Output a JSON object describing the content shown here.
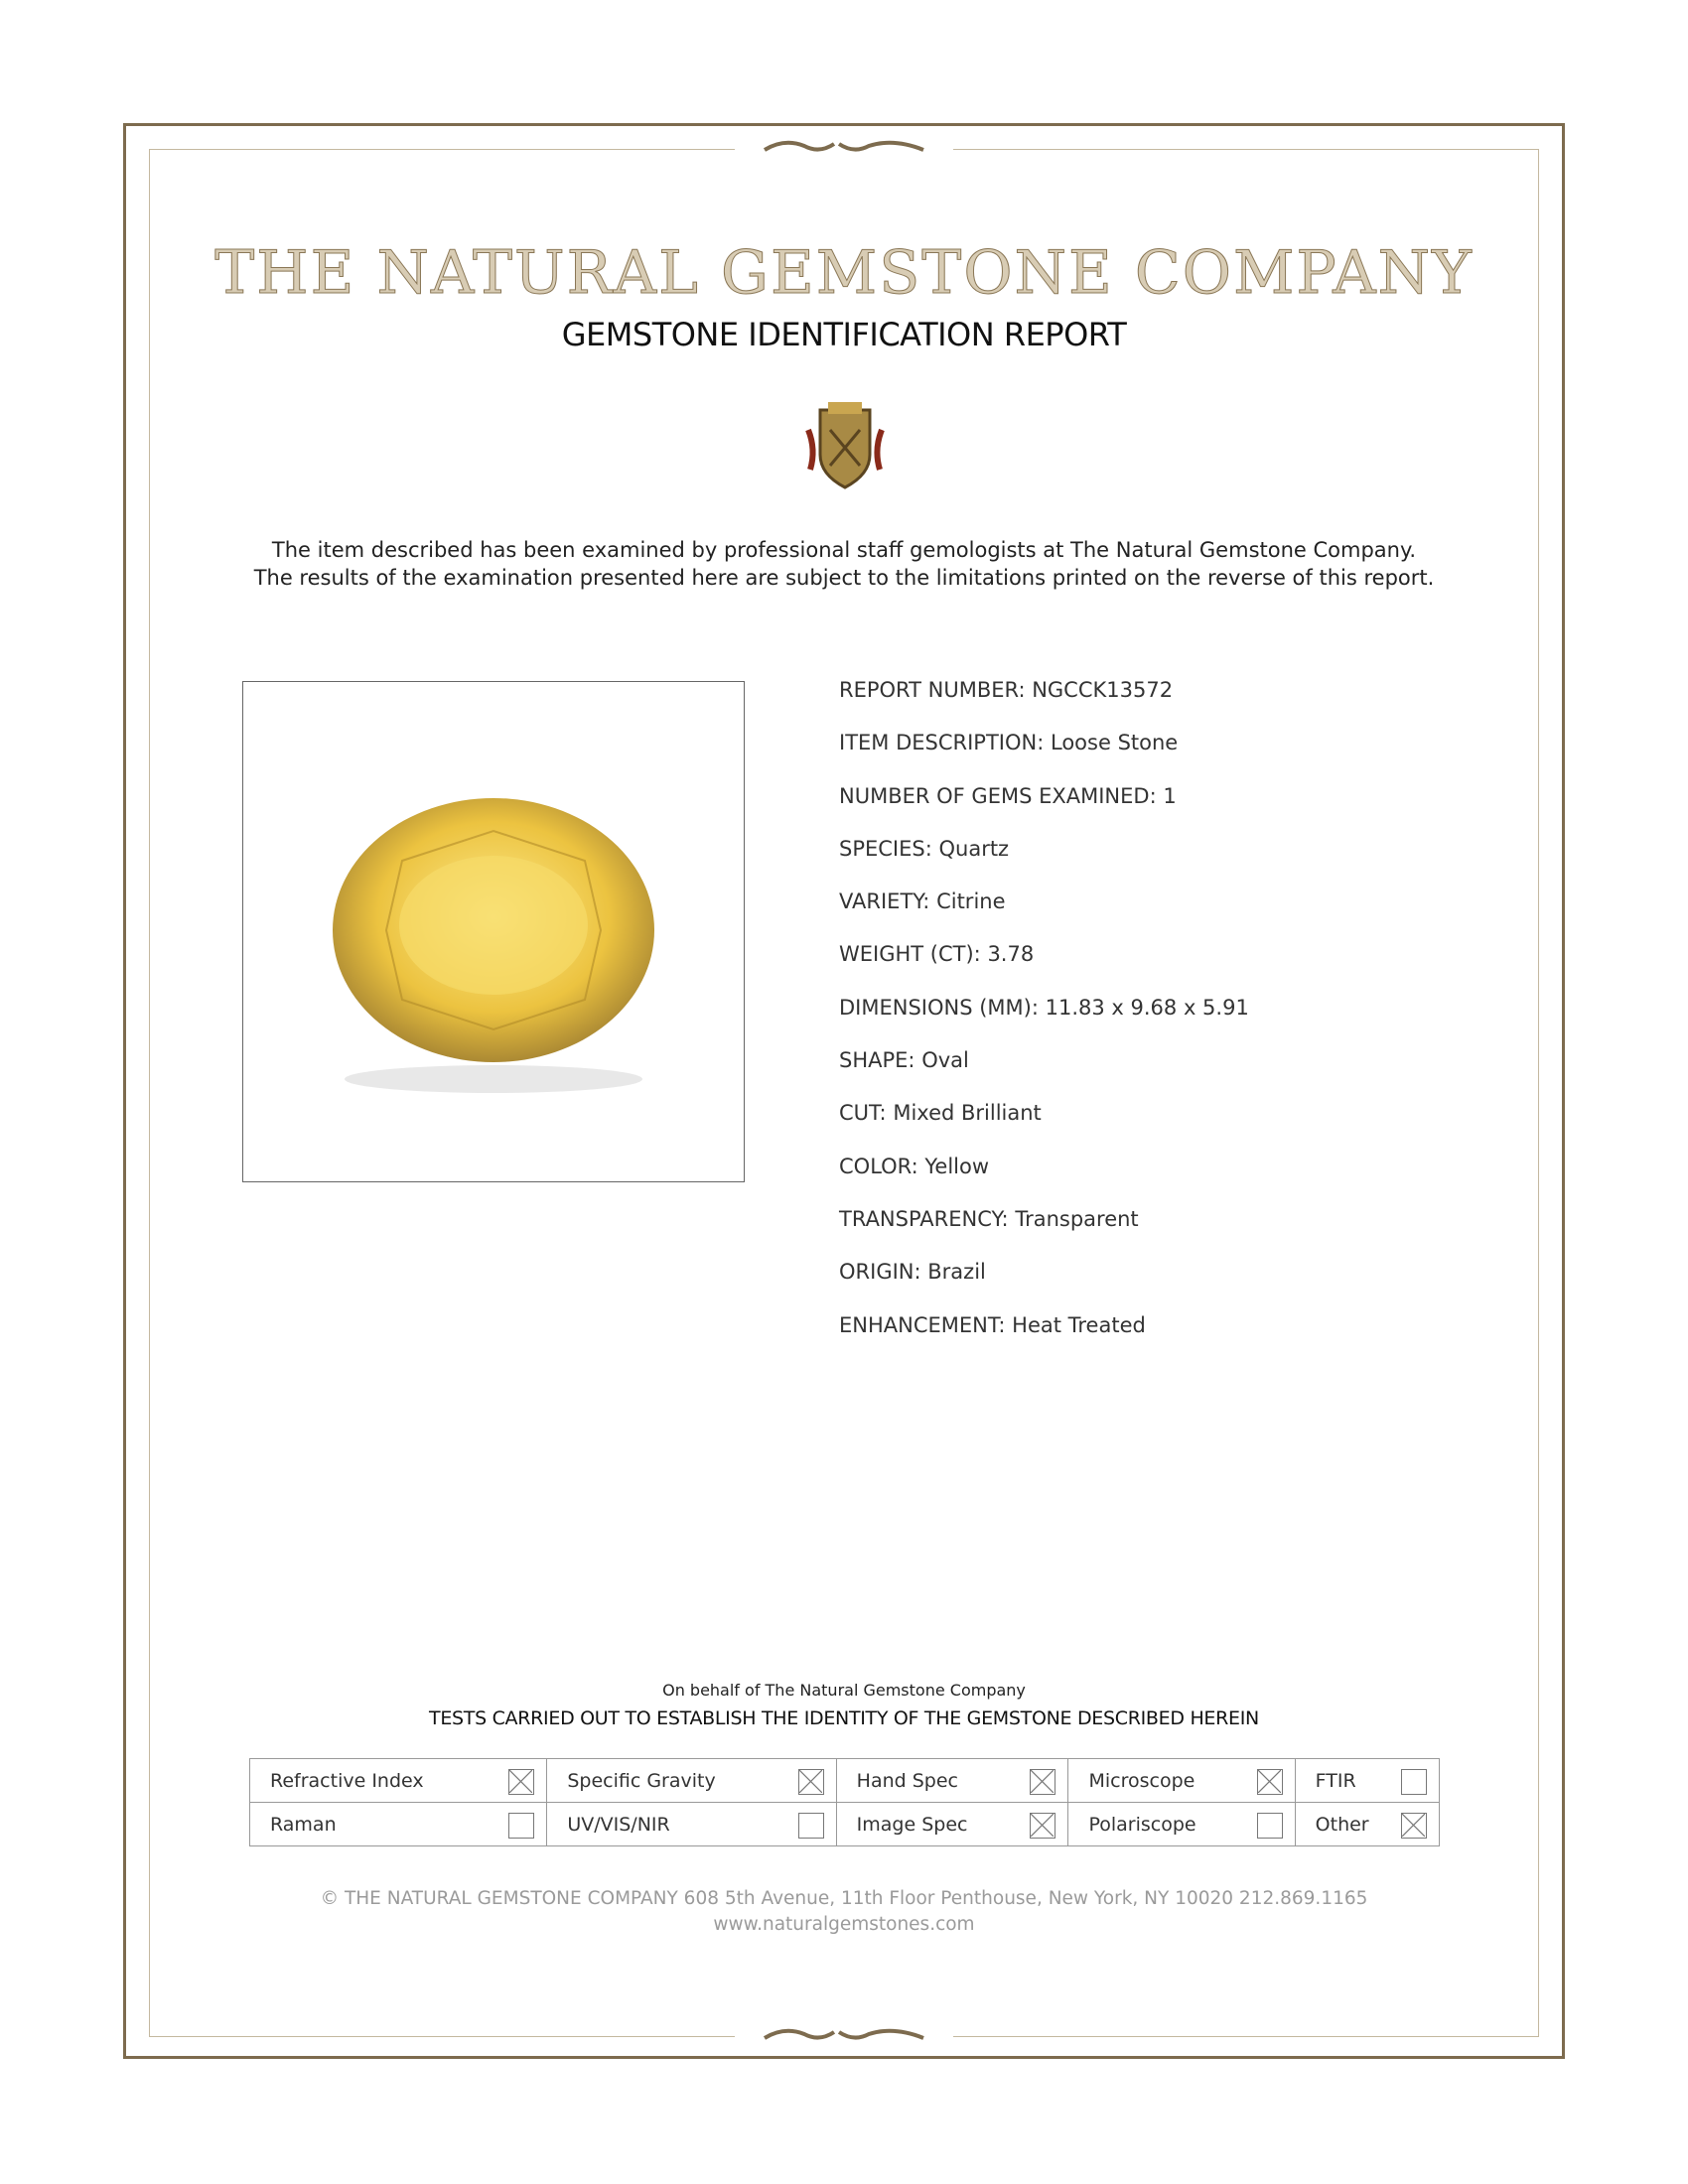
{
  "header": {
    "company": "THE NATURAL GEMSTONE COMPANY",
    "report_title": "GEMSTONE IDENTIFICATION REPORT",
    "logo_alt": "crest"
  },
  "intro": {
    "line1": "The item described has been examined by professional staff gemologists at The Natural Gemstone Company.",
    "line2": "The results of the examination presented here are subject to the limitations printed on the reverse of this report."
  },
  "fields": [
    {
      "label": "REPORT NUMBER:",
      "value": "NGCCK13572"
    },
    {
      "label": "ITEM DESCRIPTION:",
      "value": "Loose Stone"
    },
    {
      "label": "NUMBER OF GEMS EXAMINED:",
      "value": "1"
    },
    {
      "label": "SPECIES:",
      "value": "Quartz"
    },
    {
      "label": "VARIETY:",
      "value": "Citrine"
    },
    {
      "label": "WEIGHT (CT):",
      "value": "3.78"
    },
    {
      "label": "DIMENSIONS (MM):",
      "value": "11.83 x 9.68 x 5.91"
    },
    {
      "label": "SHAPE:",
      "value": "Oval"
    },
    {
      "label": "CUT:",
      "value": "Mixed Brilliant"
    },
    {
      "label": "COLOR:",
      "value": "Yellow"
    },
    {
      "label": "TRANSPARENCY:",
      "value": "Transparent"
    },
    {
      "label": "ORIGIN:",
      "value": "Brazil"
    },
    {
      "label": "ENHANCEMENT:",
      "value": "Heat Treated"
    }
  ],
  "tests": {
    "behalf": "On behalf of The Natural Gemstone Company",
    "heading": "TESTS CARRIED OUT TO ESTABLISH THE IDENTITY OF THE GEMSTONE DESCRIBED HEREIN",
    "rows": [
      [
        {
          "label": "Refractive Index",
          "checked": true
        },
        {
          "label": "Specific Gravity",
          "checked": true
        },
        {
          "label": "Hand Spec",
          "checked": true
        },
        {
          "label": "Microscope",
          "checked": true
        },
        {
          "label": "FTIR",
          "checked": false
        }
      ],
      [
        {
          "label": "Raman",
          "checked": false
        },
        {
          "label": "UV/VIS/NIR",
          "checked": false
        },
        {
          "label": "Image Spec",
          "checked": true
        },
        {
          "label": "Polariscope",
          "checked": false
        },
        {
          "label": "Other",
          "checked": true
        }
      ]
    ]
  },
  "footer": {
    "address": "© THE NATURAL GEMSTONE COMPANY  608 5th Avenue, 11th Floor Penthouse, New York, NY  10020   212.869.1165",
    "website": "www.naturalgemstones.com"
  },
  "colors": {
    "frame": "#7d6b4e",
    "title": "#a08f70",
    "gem": "#f0c840"
  }
}
